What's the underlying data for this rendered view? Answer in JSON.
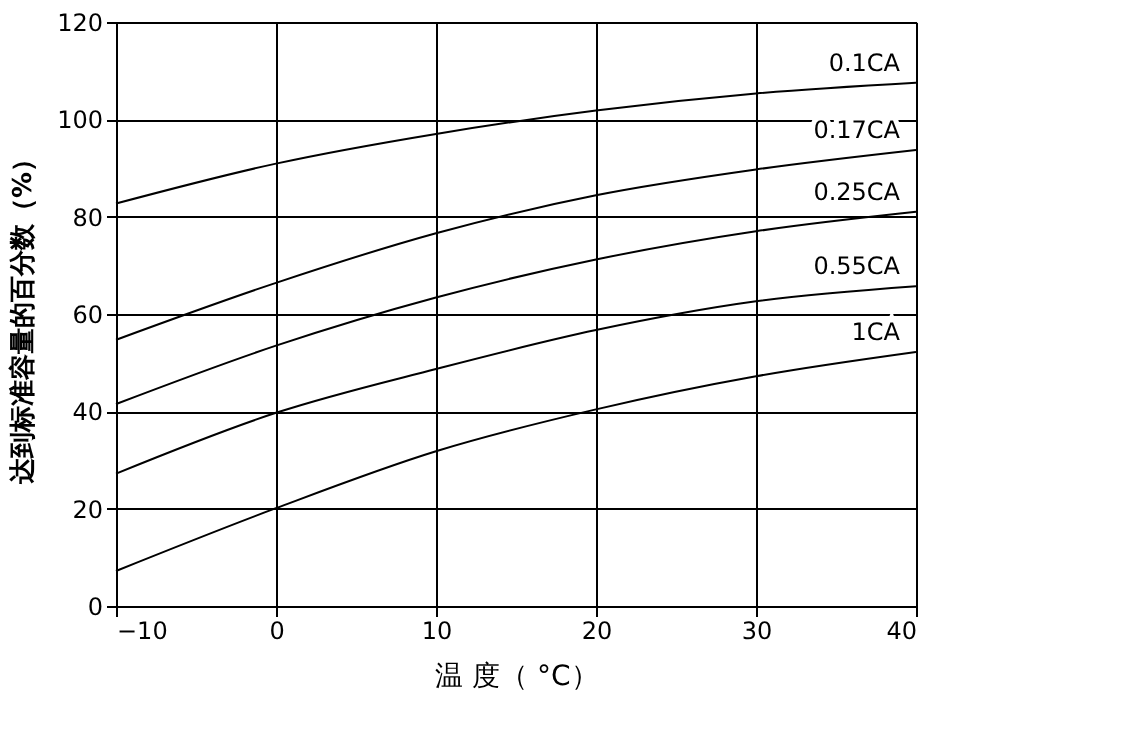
{
  "chart_data": {
    "type": "line",
    "xlabel": "温 度（ °C）",
    "ylabel": "达到标准容量的百分数（%）",
    "x": [
      -10,
      0,
      10,
      20,
      30,
      40
    ],
    "series": [
      {
        "name": "0.1CA",
        "color": "#000000",
        "values": [
          82.7,
          90.9,
          97,
          101.8,
          105.3,
          107.5
        ]
      },
      {
        "name": "0.17CA",
        "color": "#000000",
        "values": [
          54.7,
          66.4,
          76.6,
          84.4,
          89.7,
          93.7
        ]
      },
      {
        "name": "0.25CA",
        "color": "#000000",
        "values": [
          41.5,
          53.5,
          63.4,
          71.2,
          77,
          81
        ]
      },
      {
        "name": "0.55CA",
        "color": "#000000",
        "values": [
          27.2,
          39.7,
          48.7,
          56.7,
          62.6,
          65.7
        ]
      },
      {
        "name": "1CA",
        "color": "#000000",
        "values": [
          7.2,
          20.1,
          31.8,
          40.4,
          47.2,
          52.2
        ]
      }
    ],
    "xlim": [
      -10,
      40
    ],
    "xticks": [
      -10,
      0,
      10,
      20,
      30,
      40
    ],
    "ylim": [
      0,
      120
    ],
    "yticks": [
      0,
      20,
      40,
      60,
      80,
      100,
      120
    ],
    "grid": true,
    "marker": "none",
    "line_style": "solid"
  }
}
